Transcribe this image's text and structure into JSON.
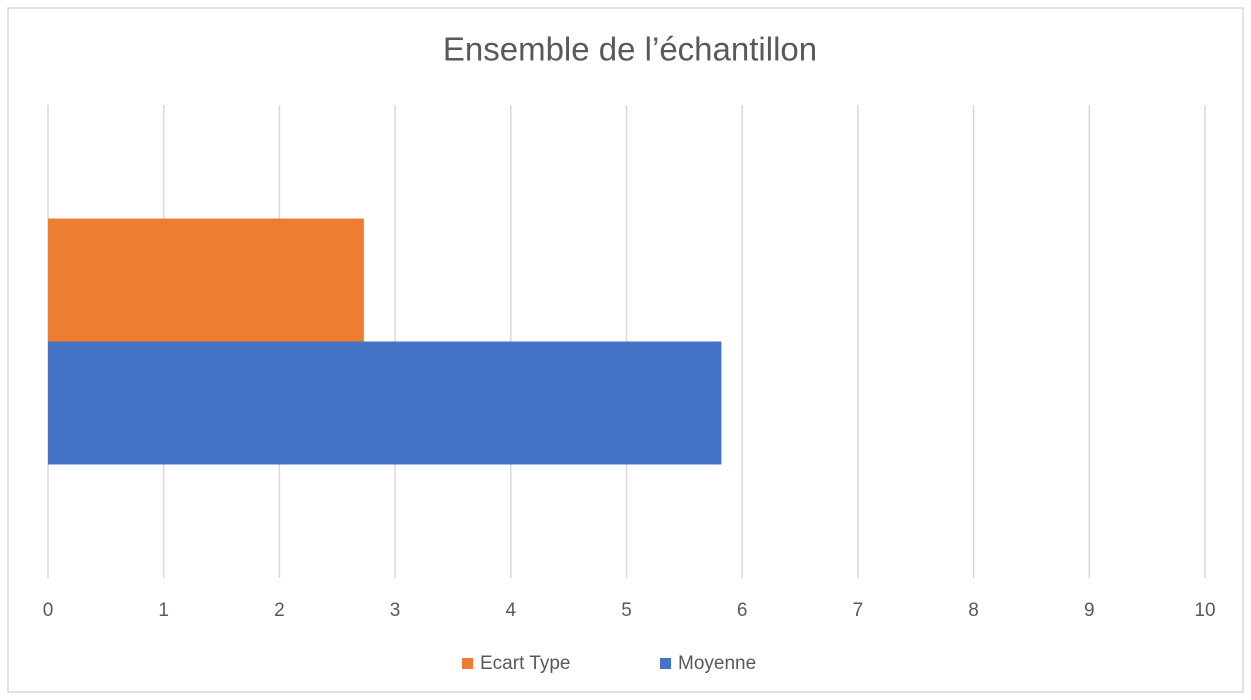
{
  "chart_data": {
    "type": "hbar",
    "title": "Ensemble de l’échantillon",
    "categories": [
      null
    ],
    "series": [
      {
        "name": "Ecart Type",
        "color": "#ed7d31",
        "values": [
          2.73
        ]
      },
      {
        "name": "Moyenne",
        "color": "#4472c4",
        "values": [
          5.82
        ]
      }
    ],
    "xlim": [
      0,
      10
    ],
    "xticks": [
      0,
      1,
      2,
      3,
      4,
      5,
      6,
      7,
      8,
      9,
      10
    ],
    "grid": true,
    "legend": "bottom"
  }
}
